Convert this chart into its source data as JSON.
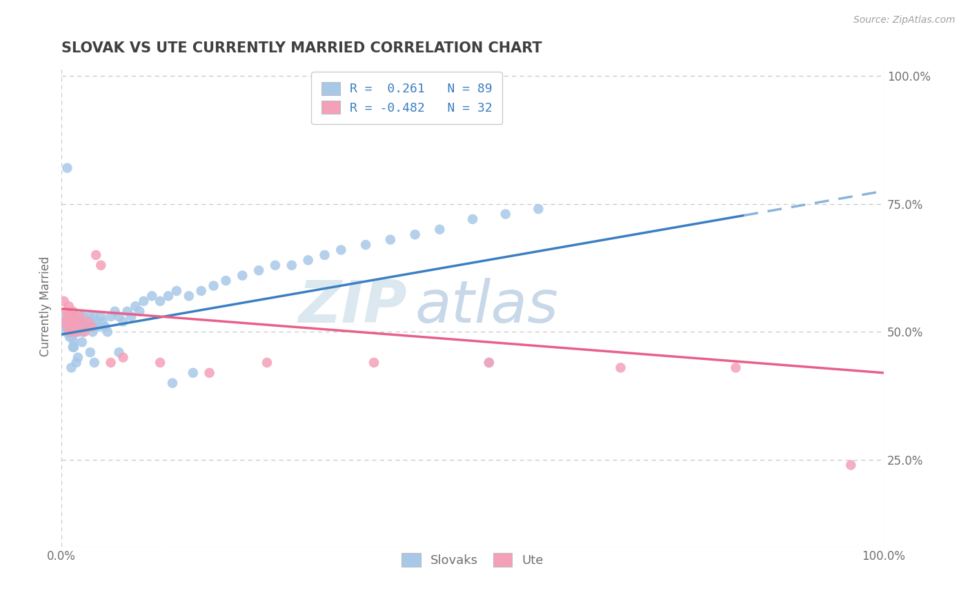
{
  "title": "SLOVAK VS UTE CURRENTLY MARRIED CORRELATION CHART",
  "source_text": "Source: ZipAtlas.com",
  "ylabel": "Currently Married",
  "xlim": [
    0.0,
    1.0
  ],
  "ylim": [
    0.08,
    1.02
  ],
  "x_tick_labels": [
    "0.0%",
    "100.0%"
  ],
  "x_tick_positions": [
    0.0,
    1.0
  ],
  "y_tick_labels": [
    "25.0%",
    "50.0%",
    "75.0%",
    "100.0%"
  ],
  "y_tick_positions": [
    0.25,
    0.5,
    0.75,
    1.0
  ],
  "slovak_color": "#a8c8e8",
  "ute_color": "#f4a0b8",
  "trendline_slovak_solid_color": "#3a7fc1",
  "trendline_slovak_dash_color": "#8ab4d8",
  "trendline_ute_color": "#e8608a",
  "legend_R_slovak": "0.261",
  "legend_N_slovak": "89",
  "legend_R_ute": "-0.482",
  "legend_N_ute": "32",
  "legend_text_color": "#3a7fc1",
  "watermark_zip": "ZIP",
  "watermark_atlas": "atlas",
  "background_color": "#ffffff",
  "grid_color": "#c8c8c8",
  "title_color": "#404040",
  "axis_label_color": "#707070",
  "source_color": "#a0a0a0",
  "slovak_trendline_x0": 0.0,
  "slovak_trendline_y0": 0.495,
  "slovak_trendline_x1": 1.0,
  "slovak_trendline_y1": 0.775,
  "slovak_trendline_solid_end": 0.83,
  "ute_trendline_x0": 0.0,
  "ute_trendline_y0": 0.545,
  "ute_trendline_x1": 1.0,
  "ute_trendline_y1": 0.42,
  "sk_x": [
    0.003,
    0.004,
    0.005,
    0.006,
    0.007,
    0.008,
    0.009,
    0.01,
    0.01,
    0.011,
    0.011,
    0.012,
    0.012,
    0.013,
    0.013,
    0.014,
    0.014,
    0.015,
    0.015,
    0.016,
    0.016,
    0.017,
    0.018,
    0.018,
    0.019,
    0.02,
    0.021,
    0.022,
    0.023,
    0.024,
    0.025,
    0.026,
    0.027,
    0.028,
    0.03,
    0.032,
    0.034,
    0.036,
    0.038,
    0.04,
    0.042,
    0.045,
    0.048,
    0.05,
    0.053,
    0.056,
    0.06,
    0.065,
    0.07,
    0.075,
    0.08,
    0.085,
    0.09,
    0.095,
    0.1,
    0.11,
    0.12,
    0.13,
    0.14,
    0.155,
    0.17,
    0.185,
    0.2,
    0.22,
    0.24,
    0.26,
    0.28,
    0.3,
    0.32,
    0.34,
    0.37,
    0.4,
    0.43,
    0.46,
    0.5,
    0.54,
    0.58,
    0.52,
    0.135,
    0.16,
    0.04,
    0.07,
    0.025,
    0.015,
    0.02,
    0.012,
    0.035,
    0.018,
    0.014
  ],
  "sk_y": [
    0.52,
    0.51,
    0.53,
    0.5,
    0.82,
    0.51,
    0.5,
    0.53,
    0.49,
    0.51,
    0.52,
    0.5,
    0.51,
    0.53,
    0.49,
    0.52,
    0.51,
    0.5,
    0.48,
    0.52,
    0.53,
    0.51,
    0.5,
    0.52,
    0.53,
    0.51,
    0.5,
    0.52,
    0.51,
    0.53,
    0.52,
    0.5,
    0.53,
    0.51,
    0.52,
    0.51,
    0.53,
    0.52,
    0.5,
    0.53,
    0.52,
    0.51,
    0.53,
    0.52,
    0.51,
    0.5,
    0.53,
    0.54,
    0.53,
    0.52,
    0.54,
    0.53,
    0.55,
    0.54,
    0.56,
    0.57,
    0.56,
    0.57,
    0.58,
    0.57,
    0.58,
    0.59,
    0.6,
    0.61,
    0.62,
    0.63,
    0.63,
    0.64,
    0.65,
    0.66,
    0.67,
    0.68,
    0.69,
    0.7,
    0.72,
    0.73,
    0.74,
    0.44,
    0.4,
    0.42,
    0.44,
    0.46,
    0.48,
    0.47,
    0.45,
    0.43,
    0.46,
    0.44,
    0.47
  ],
  "ute_x": [
    0.003,
    0.005,
    0.006,
    0.007,
    0.008,
    0.009,
    0.01,
    0.011,
    0.012,
    0.013,
    0.014,
    0.015,
    0.016,
    0.018,
    0.02,
    0.022,
    0.025,
    0.028,
    0.032,
    0.037,
    0.042,
    0.048,
    0.06,
    0.075,
    0.12,
    0.18,
    0.25,
    0.38,
    0.52,
    0.68,
    0.82,
    0.96
  ],
  "ute_y": [
    0.56,
    0.52,
    0.54,
    0.51,
    0.53,
    0.55,
    0.5,
    0.52,
    0.53,
    0.51,
    0.54,
    0.5,
    0.52,
    0.5,
    0.52,
    0.53,
    0.51,
    0.5,
    0.52,
    0.51,
    0.65,
    0.63,
    0.44,
    0.45,
    0.44,
    0.42,
    0.44,
    0.44,
    0.44,
    0.43,
    0.43,
    0.24
  ]
}
